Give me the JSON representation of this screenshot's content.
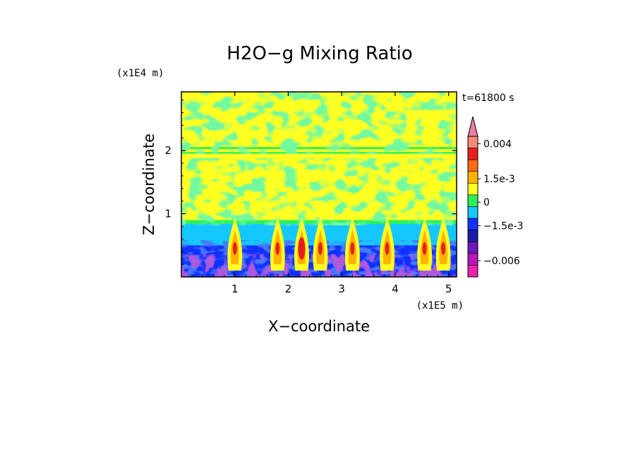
{
  "chart_data": {
    "type": "heatmap",
    "title": "H2O−g Mixing Ratio",
    "xlabel": "X−coordinate",
    "ylabel": "Z−coordinate",
    "x_multiplier": "(x1E5 m)",
    "y_multiplier": "(x1E4 m)",
    "time_label": "t=61800 s",
    "xlim": [
      0,
      5.15
    ],
    "ylim": [
      0,
      2.93
    ],
    "x_ticks": [
      1,
      2,
      3,
      4,
      5
    ],
    "y_ticks": [
      1,
      2
    ],
    "bands": [
      {
        "name": "upper-layer",
        "z_range": [
          2.05,
          2.93
        ],
        "pattern": "yellow-green streaks"
      },
      {
        "name": "thin-line",
        "z_value": 2.0,
        "pattern": "horizontal yellow/green band"
      },
      {
        "name": "mid-layer",
        "z_range": [
          0.9,
          1.95
        ],
        "pattern": "mostly yellow with green patches"
      },
      {
        "name": "cyan-layer",
        "z_range": [
          0.5,
          0.85
        ],
        "pattern": "cyan with yellow/orange plumes"
      },
      {
        "name": "surface-layer",
        "z_range": [
          0.0,
          0.5
        ],
        "pattern": "blue/purple/magenta turbulent"
      }
    ],
    "plume_peaks_x": [
      1.0,
      1.8,
      2.25,
      2.6,
      3.2,
      3.85,
      4.55,
      4.9
    ],
    "colorbar": {
      "levels": [
        {
          "color": "#e880a0",
          "label": ""
        },
        {
          "color": "#ff8a7a",
          "label": "0.004"
        },
        {
          "color": "#e81e1e",
          "label": ""
        },
        {
          "color": "#ff6a14",
          "label": ""
        },
        {
          "color": "#ffb300",
          "label": "1.5e-3"
        },
        {
          "color": "#ffff22",
          "label": ""
        },
        {
          "color": "#2cf05a",
          "label": "0"
        },
        {
          "color": "#14c8ff",
          "label": ""
        },
        {
          "color": "#1030ff",
          "label": "−1.5e-3"
        },
        {
          "color": "#1a1aa8",
          "label": ""
        },
        {
          "color": "#6a1ab8",
          "label": ""
        },
        {
          "color": "#b818b8",
          "label": "−0.006"
        },
        {
          "color": "#ee22aa",
          "label": ""
        }
      ]
    }
  }
}
